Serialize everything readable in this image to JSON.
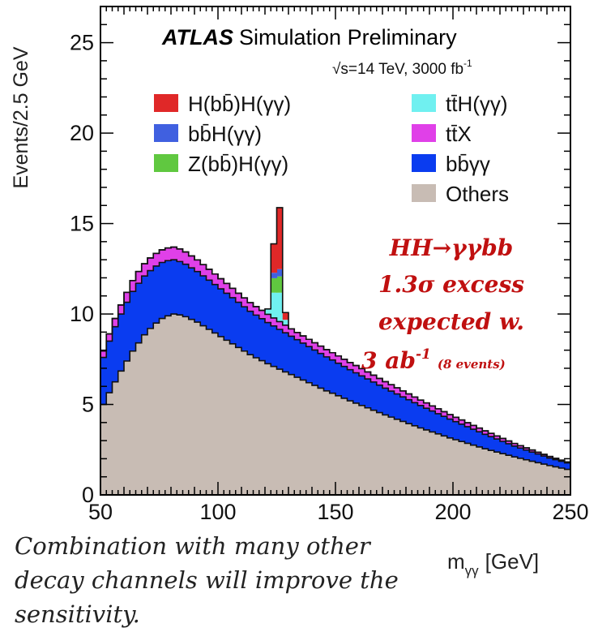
{
  "chart_data": {
    "type": "area",
    "stacked": true,
    "histogram": true,
    "xlabel": "m",
    "xlabel_sub": "γγ",
    "xlabel_unit": "[GeV]",
    "ylabel": "Events/2.5 GeV",
    "xlim": [
      50,
      250
    ],
    "ylim": [
      0,
      27
    ],
    "xticks": [
      "50",
      "100",
      "150",
      "200",
      "250"
    ],
    "yticks": [
      "0",
      "5",
      "10",
      "15",
      "20",
      "25"
    ],
    "bin_width": 2.5,
    "bin_centers": [
      51.25,
      53.75,
      56.25,
      58.75,
      61.25,
      63.75,
      66.25,
      68.75,
      71.25,
      73.75,
      76.25,
      78.75,
      81.25,
      83.75,
      86.25,
      88.75,
      91.25,
      93.75,
      96.25,
      98.75,
      101.25,
      103.75,
      106.25,
      108.75,
      111.25,
      113.75,
      116.25,
      118.75,
      121.25,
      123.75,
      126.25,
      128.75,
      131.25,
      133.75,
      136.25,
      138.75,
      141.25,
      143.75,
      146.25,
      148.75,
      151.25,
      153.75,
      156.25,
      158.75,
      161.25,
      163.75,
      166.25,
      168.75,
      171.25,
      173.75,
      176.25,
      178.75,
      181.25,
      183.75,
      186.25,
      188.75,
      191.25,
      193.75,
      196.25,
      198.75,
      201.25,
      203.75,
      206.25,
      208.75,
      211.25,
      213.75,
      216.25,
      218.75,
      221.25,
      223.75,
      226.25,
      228.75,
      231.25,
      233.75,
      236.25,
      238.75,
      241.25,
      243.75,
      246.25,
      248.75
    ],
    "series": [
      {
        "name": "Others",
        "color": "#c8bcb4",
        "values": [
          5.0,
          5.65,
          6.25,
          6.85,
          7.4,
          7.95,
          8.4,
          8.85,
          9.2,
          9.5,
          9.75,
          9.9,
          10.0,
          9.95,
          9.85,
          9.7,
          9.55,
          9.35,
          9.15,
          8.95,
          8.75,
          8.55,
          8.35,
          8.15,
          7.95,
          7.75,
          7.58,
          7.42,
          7.25,
          7.1,
          6.95,
          6.8,
          6.65,
          6.5,
          6.35,
          6.2,
          6.05,
          5.9,
          5.75,
          5.62,
          5.48,
          5.34,
          5.2,
          5.07,
          4.94,
          4.81,
          4.68,
          4.55,
          4.42,
          4.3,
          4.18,
          4.06,
          3.94,
          3.82,
          3.7,
          3.59,
          3.48,
          3.37,
          3.26,
          3.15,
          3.05,
          2.95,
          2.85,
          2.75,
          2.65,
          2.55,
          2.46,
          2.37,
          2.28,
          2.19,
          2.1,
          2.02,
          1.94,
          1.86,
          1.78,
          1.7,
          1.62,
          1.55,
          1.48,
          1.41
        ]
      },
      {
        "name": "bb̄γγ",
        "color": "#0a3cf0",
        "values": [
          2.6,
          2.85,
          3.05,
          3.15,
          3.25,
          3.3,
          3.3,
          3.25,
          3.2,
          3.15,
          3.1,
          3.05,
          3.0,
          2.95,
          2.9,
          2.85,
          2.8,
          2.76,
          2.72,
          2.68,
          2.64,
          2.6,
          2.55,
          2.5,
          2.45,
          2.4,
          2.36,
          2.32,
          2.28,
          2.24,
          2.2,
          2.16,
          2.12,
          2.08,
          2.04,
          2.0,
          1.96,
          1.92,
          1.88,
          1.84,
          1.8,
          1.76,
          1.72,
          1.68,
          1.64,
          1.6,
          1.56,
          1.52,
          1.48,
          1.44,
          1.4,
          1.36,
          1.32,
          1.28,
          1.24,
          1.2,
          1.16,
          1.12,
          1.08,
          1.04,
          1.0,
          0.96,
          0.92,
          0.88,
          0.84,
          0.8,
          0.76,
          0.72,
          0.68,
          0.64,
          0.6,
          0.57,
          0.54,
          0.51,
          0.48,
          0.45,
          0.42,
          0.4,
          0.38,
          0.36
        ]
      },
      {
        "name": "tt̄X",
        "color": "#e040e8",
        "values": [
          0.35,
          0.4,
          0.45,
          0.5,
          0.55,
          0.6,
          0.65,
          0.68,
          0.7,
          0.7,
          0.7,
          0.7,
          0.7,
          0.7,
          0.68,
          0.66,
          0.64,
          0.62,
          0.6,
          0.58,
          0.56,
          0.54,
          0.52,
          0.5,
          0.49,
          0.48,
          0.47,
          0.46,
          0.45,
          0.44,
          0.43,
          0.42,
          0.41,
          0.4,
          0.4,
          0.4,
          0.4,
          0.4,
          0.4,
          0.4,
          0.4,
          0.4,
          0.4,
          0.4,
          0.4,
          0.39,
          0.38,
          0.37,
          0.36,
          0.35,
          0.34,
          0.33,
          0.32,
          0.31,
          0.3,
          0.29,
          0.28,
          0.27,
          0.26,
          0.25,
          0.24,
          0.23,
          0.22,
          0.21,
          0.2,
          0.19,
          0.18,
          0.17,
          0.16,
          0.15,
          0.14,
          0.13,
          0.12,
          0.11,
          0.1,
          0.09,
          0.08,
          0.07,
          0.06,
          0.05
        ]
      },
      {
        "name": "tt̄H(γγ)",
        "color": "#70f0f0",
        "values": [
          0,
          0,
          0,
          0,
          0,
          0,
          0,
          0,
          0,
          0,
          0,
          0,
          0,
          0,
          0,
          0,
          0,
          0,
          0,
          0,
          0,
          0,
          0,
          0,
          0,
          0,
          0,
          0,
          0.3,
          1.4,
          1.6,
          0.3,
          0,
          0,
          0,
          0,
          0,
          0,
          0,
          0,
          0,
          0,
          0,
          0,
          0,
          0,
          0,
          0,
          0,
          0,
          0,
          0,
          0,
          0,
          0,
          0,
          0,
          0,
          0,
          0,
          0,
          0,
          0,
          0,
          0,
          0,
          0,
          0,
          0,
          0,
          0,
          0,
          0,
          0,
          0,
          0,
          0,
          0,
          0,
          0
        ]
      },
      {
        "name": "Z(bb̄)H(γγ)",
        "color": "#60c840",
        "values": [
          0,
          0,
          0,
          0,
          0,
          0,
          0,
          0,
          0,
          0,
          0,
          0,
          0,
          0,
          0,
          0,
          0,
          0,
          0,
          0,
          0,
          0,
          0,
          0,
          0,
          0,
          0,
          0,
          0,
          0.8,
          0.9,
          0,
          0,
          0,
          0,
          0,
          0,
          0,
          0,
          0,
          0,
          0,
          0,
          0,
          0,
          0,
          0,
          0,
          0,
          0,
          0,
          0,
          0,
          0,
          0,
          0,
          0,
          0,
          0,
          0,
          0,
          0,
          0,
          0,
          0,
          0,
          0,
          0,
          0,
          0,
          0,
          0,
          0,
          0,
          0,
          0,
          0,
          0,
          0,
          0
        ]
      },
      {
        "name": "bb̄H(γγ)",
        "color": "#4060e0",
        "values": [
          0,
          0,
          0,
          0,
          0,
          0,
          0,
          0,
          0,
          0,
          0,
          0,
          0,
          0,
          0,
          0,
          0,
          0,
          0,
          0,
          0,
          0,
          0,
          0,
          0,
          0,
          0,
          0,
          0,
          0.3,
          0.4,
          0,
          0,
          0,
          0,
          0,
          0,
          0,
          0,
          0,
          0,
          0,
          0,
          0,
          0,
          0,
          0,
          0,
          0,
          0,
          0,
          0,
          0,
          0,
          0,
          0,
          0,
          0,
          0,
          0,
          0,
          0,
          0,
          0,
          0,
          0,
          0,
          0,
          0,
          0,
          0,
          0,
          0,
          0,
          0,
          0,
          0,
          0,
          0,
          0
        ]
      },
      {
        "name": "H(bb̄)H(γγ)",
        "color": "#e02828",
        "values": [
          0,
          0,
          0,
          0,
          0,
          0,
          0,
          0,
          0,
          0,
          0,
          0,
          0,
          0,
          0,
          0,
          0,
          0,
          0,
          0,
          0,
          0,
          0,
          0,
          0,
          0,
          0,
          0,
          0,
          1.6,
          3.4,
          0.4,
          0,
          0,
          0,
          0,
          0,
          0,
          0,
          0,
          0,
          0,
          0,
          0,
          0,
          0,
          0,
          0,
          0,
          0,
          0,
          0,
          0,
          0,
          0,
          0,
          0,
          0,
          0,
          0,
          0,
          0,
          0,
          0,
          0,
          0,
          0,
          0,
          0,
          0,
          0,
          0,
          0,
          0,
          0,
          0,
          0,
          0,
          0,
          0
        ]
      }
    ],
    "legend": {
      "placement": "top",
      "left_column": [
        "H(bb̄)H(γγ)",
        "bb̄H(γγ)",
        "Z(bb̄)H(γγ)"
      ],
      "right_column": [
        "tt̄H(γγ)",
        "tt̄X",
        "bb̄γγ",
        "Others"
      ]
    },
    "annotations": {
      "experiment": "ATLAS",
      "experiment_tag": "Simulation Preliminary",
      "energy": "√s=14 TeV, 3000 fb",
      "energy_sup": "-1",
      "excess_lines": [
        "HH→γγbb",
        "1.3σ excess",
        "expected w."
      ],
      "excess_lumi": "3 ab",
      "excess_lumi_sup": "-1",
      "excess_events": "(8 events)"
    }
  },
  "caption": {
    "text": "Combination with many other decay channels will improve the sensitivity."
  }
}
